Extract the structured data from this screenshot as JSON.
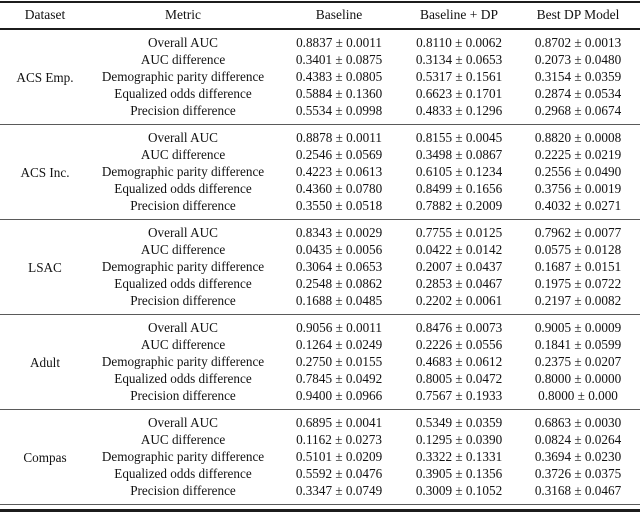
{
  "table": {
    "columns": [
      "Dataset",
      "Metric",
      "Baseline",
      "Baseline + DP",
      "Best DP Model"
    ],
    "groups": [
      {
        "dataset": "ACS Emp.",
        "rows": [
          {
            "metric": "Overall AUC",
            "baseline": "0.8837 ± 0.0011",
            "baseline_dp": "0.8110 ± 0.0062",
            "best_dp": "0.8702 ± 0.0013"
          },
          {
            "metric": "AUC difference",
            "baseline": "0.3401 ± 0.0875",
            "baseline_dp": "0.3134 ± 0.0653",
            "best_dp": "0.2073 ± 0.0480"
          },
          {
            "metric": "Demographic parity difference",
            "baseline": "0.4383 ± 0.0805",
            "baseline_dp": "0.5317 ± 0.1561",
            "best_dp": "0.3154 ± 0.0359"
          },
          {
            "metric": "Equalized odds difference",
            "baseline": "0.5884 ± 0.1360",
            "baseline_dp": "0.6623 ± 0.1701",
            "best_dp": "0.2874 ± 0.0534"
          },
          {
            "metric": "Precision difference",
            "baseline": "0.5534 ± 0.0998",
            "baseline_dp": "0.4833 ± 0.1296",
            "best_dp": "0.2968 ± 0.0674"
          }
        ]
      },
      {
        "dataset": "ACS Inc.",
        "rows": [
          {
            "metric": "Overall AUC",
            "baseline": "0.8878 ± 0.0011",
            "baseline_dp": "0.8155 ± 0.0045",
            "best_dp": "0.8820 ± 0.0008"
          },
          {
            "metric": "AUC difference",
            "baseline": "0.2546 ± 0.0569",
            "baseline_dp": "0.3498 ± 0.0867",
            "best_dp": "0.2225 ± 0.0219"
          },
          {
            "metric": "Demographic parity difference",
            "baseline": "0.4223 ± 0.0613",
            "baseline_dp": "0.6105 ± 0.1234",
            "best_dp": "0.2556 ± 0.0490"
          },
          {
            "metric": "Equalized odds difference",
            "baseline": "0.4360 ± 0.0780",
            "baseline_dp": "0.8499 ± 0.1656",
            "best_dp": "0.3756 ± 0.0019"
          },
          {
            "metric": "Precision difference",
            "baseline": "0.3550 ± 0.0518",
            "baseline_dp": "0.7882 ± 0.2009",
            "best_dp": "0.4032 ± 0.0271"
          }
        ]
      },
      {
        "dataset": "LSAC",
        "rows": [
          {
            "metric": "Overall AUC",
            "baseline": "0.8343 ± 0.0029",
            "baseline_dp": "0.7755 ± 0.0125",
            "best_dp": "0.7962 ± 0.0077"
          },
          {
            "metric": "AUC difference",
            "baseline": "0.0435 ± 0.0056",
            "baseline_dp": "0.0422 ± 0.0142",
            "best_dp": "0.0575 ± 0.0128"
          },
          {
            "metric": "Demographic parity difference",
            "baseline": "0.3064 ± 0.0653",
            "baseline_dp": "0.2007 ± 0.0437",
            "best_dp": "0.1687 ± 0.0151"
          },
          {
            "metric": "Equalized odds difference",
            "baseline": "0.2548 ± 0.0862",
            "baseline_dp": "0.2853 ± 0.0467",
            "best_dp": "0.1975 ± 0.0722"
          },
          {
            "metric": "Precision difference",
            "baseline": "0.1688 ± 0.0485",
            "baseline_dp": "0.2202 ± 0.0061",
            "best_dp": "0.2197 ± 0.0082"
          }
        ]
      },
      {
        "dataset": "Adult",
        "rows": [
          {
            "metric": "Overall AUC",
            "baseline": "0.9056 ± 0.0011",
            "baseline_dp": "0.8476 ± 0.0073",
            "best_dp": "0.9005 ± 0.0009"
          },
          {
            "metric": "AUC difference",
            "baseline": "0.1264 ± 0.0249",
            "baseline_dp": "0.2226 ± 0.0556",
            "best_dp": "0.1841 ± 0.0599"
          },
          {
            "metric": "Demographic parity difference",
            "baseline": "0.2750 ± 0.0155",
            "baseline_dp": "0.4683 ± 0.0612",
            "best_dp": "0.2375 ± 0.0207"
          },
          {
            "metric": "Equalized odds difference",
            "baseline": "0.7845 ± 0.0492",
            "baseline_dp": "0.8005 ± 0.0472",
            "best_dp": "0.8000 ± 0.0000"
          },
          {
            "metric": "Precision difference",
            "baseline": "0.9400 ± 0.0966",
            "baseline_dp": "0.7567 ± 0.1933",
            "best_dp": "0.8000 ± 0.000"
          }
        ]
      },
      {
        "dataset": "Compas",
        "rows": [
          {
            "metric": "Overall AUC",
            "baseline": "0.6895 ± 0.0041",
            "baseline_dp": "0.5349 ± 0.0359",
            "best_dp": "0.6863 ± 0.0030"
          },
          {
            "metric": "AUC difference",
            "baseline": "0.1162 ± 0.0273",
            "baseline_dp": "0.1295 ± 0.0390",
            "best_dp": "0.0824 ± 0.0264"
          },
          {
            "metric": "Demographic parity difference",
            "baseline": "0.5101 ± 0.0209",
            "baseline_dp": "0.3322 ± 0.1331",
            "best_dp": "0.3694 ± 0.0230"
          },
          {
            "metric": "Equalized odds difference",
            "baseline": "0.5592 ± 0.0476",
            "baseline_dp": "0.3905 ± 0.1356",
            "best_dp": "0.3726 ± 0.0375"
          },
          {
            "metric": "Precision difference",
            "baseline": "0.3347 ± 0.0749",
            "baseline_dp": "0.3009 ± 0.1052",
            "best_dp": "0.3168 ± 0.0467"
          }
        ]
      }
    ]
  }
}
